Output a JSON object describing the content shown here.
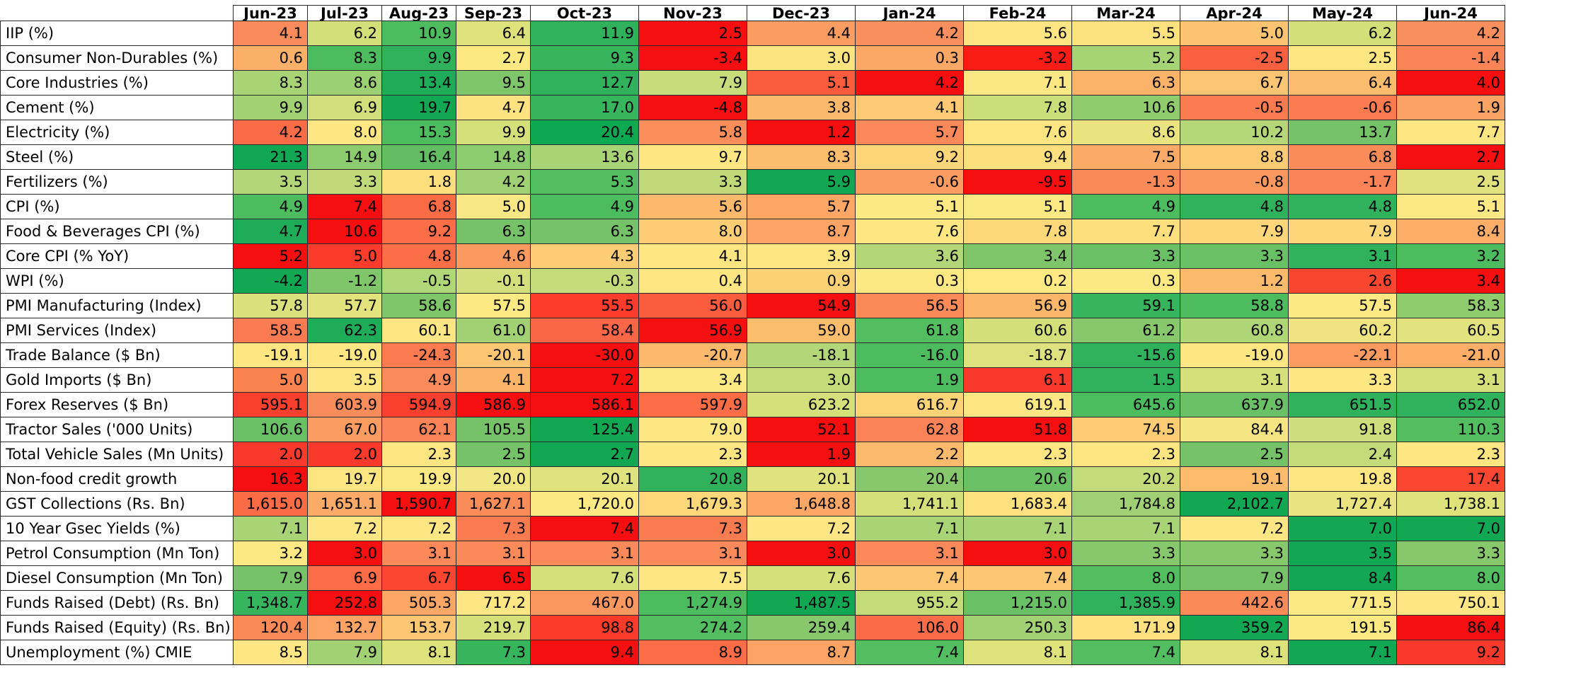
{
  "chart_data": {
    "type": "heatmap",
    "columns": [
      "Jun-23",
      "Jul-23",
      "Aug-23",
      "Sep-23",
      "Oct-23",
      "Nov-23",
      "Dec-23",
      "Jan-24",
      "Feb-24",
      "Mar-24",
      "Apr-24",
      "May-24",
      "Jun-24"
    ],
    "rows": [
      {
        "label": "IIP (%)",
        "values": [
          "4.1",
          "6.2",
          "10.9",
          "6.4",
          "11.9",
          "2.5",
          "4.4",
          "4.2",
          "5.6",
          "5.5",
          "5.0",
          "6.2",
          "4.2"
        ],
        "colors": [
          "#f98b5c",
          "#d3e07a",
          "#4cbc5f",
          "#dde27b",
          "#2fb25b",
          "#f60f10",
          "#fb9d61",
          "#f98f5d",
          "#fde584",
          "#fbe27e",
          "#fcc471",
          "#d3e07a",
          "#f98f5d"
        ]
      },
      {
        "label": "Consumer Non-Durables (%)",
        "values": [
          "0.6",
          "8.3",
          "9.9",
          "2.7",
          "9.3",
          "-3.4",
          "3.0",
          "0.3",
          "-3.2",
          "5.2",
          "-2.5",
          "2.5",
          "-1.4"
        ],
        "colors": [
          "#fbb069",
          "#4cbc5f",
          "#2fb25b",
          "#fce982",
          "#37b55c",
          "#f60f10",
          "#fce580",
          "#fba866",
          "#f71c16",
          "#a6d475",
          "#f9603f",
          "#fee783",
          "#fa8455"
        ]
      },
      {
        "label": "Core Industries (%)",
        "values": [
          "8.3",
          "8.6",
          "13.4",
          "9.5",
          "12.7",
          "7.9",
          "5.1",
          "4.2",
          "7.1",
          "6.3",
          "6.7",
          "6.4",
          "4.0"
        ],
        "colors": [
          "#a9d476",
          "#9bd073",
          "#1eac58",
          "#7fc56a",
          "#2fb25b",
          "#c8dc7c",
          "#fc5c3e",
          "#f60f10",
          "#fbe885",
          "#fbb36a",
          "#fcc573",
          "#fbbc6d",
          "#f60f10"
        ]
      },
      {
        "label": "Cement (%)",
        "values": [
          "9.9",
          "6.9",
          "19.7",
          "4.7",
          "17.0",
          "-4.8",
          "3.8",
          "4.1",
          "7.8",
          "10.6",
          "-0.5",
          "-0.6",
          "1.9"
        ],
        "colors": [
          "#a1d173",
          "#d1de7c",
          "#12a853",
          "#fce280",
          "#37b55c",
          "#f60f10",
          "#fbb96b",
          "#fcca74",
          "#ccde7a",
          "#8fcc6e",
          "#fb7b51",
          "#fb7b51",
          "#fba265"
        ]
      },
      {
        "label": "Electricity (%)",
        "values": [
          "4.2",
          "8.0",
          "15.3",
          "9.9",
          "20.4",
          "5.8",
          "1.2",
          "5.7",
          "7.6",
          "8.6",
          "10.2",
          "13.7",
          "7.7"
        ],
        "colors": [
          "#fa6c47",
          "#fee683",
          "#4cbc5f",
          "#d5e07b",
          "#0fa852",
          "#fb8d5a",
          "#f60f10",
          "#fb8959",
          "#fde582",
          "#e9e480",
          "#b4d777",
          "#76c268",
          "#fde582"
        ]
      },
      {
        "label": "Steel (%)",
        "values": [
          "21.3",
          "14.9",
          "16.4",
          "14.8",
          "13.6",
          "9.7",
          "8.3",
          "9.2",
          "9.4",
          "7.5",
          "8.8",
          "6.8",
          "2.7"
        ],
        "colors": [
          "#12a853",
          "#8ccc6e",
          "#63bd62",
          "#8ccc6e",
          "#a9d476",
          "#fee683",
          "#fcbd6d",
          "#fdd67a",
          "#fde07d",
          "#fbaa67",
          "#fbcb74",
          "#fa8c5a",
          "#f60f10"
        ]
      },
      {
        "label": "Fertilizers (%)",
        "values": [
          "3.5",
          "3.3",
          "1.8",
          "4.2",
          "5.3",
          "3.3",
          "5.9",
          "-0.6",
          "-9.5",
          "-1.3",
          "-0.8",
          "-1.7",
          "2.5"
        ],
        "colors": [
          "#b2d678",
          "#c0da7a",
          "#fde07d",
          "#9fd174",
          "#52be5f",
          "#c0da7a",
          "#12a853",
          "#fb9d61",
          "#f60f10",
          "#fb8a59",
          "#fb9860",
          "#fb8357",
          "#e0e27e"
        ]
      },
      {
        "label": "CPI (%)",
        "values": [
          "4.9",
          "7.4",
          "6.8",
          "5.0",
          "4.9",
          "5.6",
          "5.7",
          "5.1",
          "5.1",
          "4.9",
          "4.8",
          "4.8",
          "5.1"
        ],
        "colors": [
          "#4cbc5f",
          "#f60f10",
          "#fa6b46",
          "#f7e785",
          "#4cbc5f",
          "#fcb96b",
          "#fca766",
          "#fde983",
          "#fde983",
          "#4cbc5f",
          "#2fb25b",
          "#2fb25b",
          "#fde983"
        ]
      },
      {
        "label": "Food & Beverages CPI (%)",
        "values": [
          "4.7",
          "10.6",
          "9.2",
          "6.3",
          "6.3",
          "8.0",
          "8.7",
          "7.6",
          "7.8",
          "7.7",
          "7.9",
          "7.9",
          "8.4"
        ],
        "colors": [
          "#1eac58",
          "#f60f10",
          "#fb6e48",
          "#76c268",
          "#76c268",
          "#fdcd76",
          "#fba465",
          "#fee683",
          "#fdd87b",
          "#fde07d",
          "#fdd67a",
          "#fdd67a",
          "#fcae69"
        ]
      },
      {
        "label": "Core CPI (% YoY)",
        "values": [
          "5.2",
          "5.0",
          "4.8",
          "4.6",
          "4.3",
          "4.1",
          "3.9",
          "3.6",
          "3.4",
          "3.3",
          "3.3",
          "3.1",
          "3.2"
        ],
        "colors": [
          "#f60f10",
          "#fb3c2c",
          "#fb6e48",
          "#fb9a5f",
          "#fccd75",
          "#fde582",
          "#fde582",
          "#b2d678",
          "#7fc56a",
          "#6ac065",
          "#6ac065",
          "#2fb25b",
          "#4cbc5f"
        ]
      },
      {
        "label": "WPI (%)",
        "values": [
          "-4.2",
          "-1.2",
          "-0.5",
          "-0.1",
          "-0.3",
          "0.4",
          "0.9",
          "0.3",
          "0.2",
          "0.3",
          "1.2",
          "2.6",
          "3.4"
        ],
        "colors": [
          "#12a853",
          "#7fc56a",
          "#b0d777",
          "#d2df7c",
          "#c4db7a",
          "#fde582",
          "#fcd074",
          "#fde983",
          "#fee983",
          "#fde983",
          "#fcba6c",
          "#f9472f",
          "#f60f10"
        ]
      },
      {
        "label": "PMI Manufacturing (Index)",
        "values": [
          "57.8",
          "57.7",
          "58.6",
          "57.5",
          "55.5",
          "56.0",
          "54.9",
          "56.5",
          "56.9",
          "59.1",
          "58.8",
          "57.5",
          "58.3"
        ],
        "colors": [
          "#dae17c",
          "#e3e37e",
          "#7fc56a",
          "#fde983",
          "#fc3c2c",
          "#fc5c3e",
          "#f60f10",
          "#fb8a59",
          "#fcb66a",
          "#37b55c",
          "#4cbc5f",
          "#fde983",
          "#8fcc6e"
        ]
      },
      {
        "label": "PMI Services (Index)",
        "values": [
          "58.5",
          "62.3",
          "60.1",
          "61.0",
          "58.4",
          "56.9",
          "59.0",
          "61.8",
          "60.6",
          "61.2",
          "60.8",
          "60.2",
          "60.5"
        ],
        "colors": [
          "#fa7b52",
          "#1eac58",
          "#fde683",
          "#a1d173",
          "#fa6646",
          "#f60f10",
          "#fcbd6d",
          "#52be5f",
          "#d3e07a",
          "#86c86b",
          "#afd676",
          "#eee582",
          "#e2e27f"
        ]
      },
      {
        "label": "Trade Balance ($ Bn)",
        "values": [
          "-19.1",
          "-19.0",
          "-24.3",
          "-20.1",
          "-30.0",
          "-20.7",
          "-18.1",
          "-16.0",
          "-18.7",
          "-15.6",
          "-19.0",
          "-22.1",
          "-21.0"
        ],
        "colors": [
          "#fde582",
          "#fee683",
          "#fb7b51",
          "#fcc672",
          "#f60f10",
          "#fcb86b",
          "#b2d678",
          "#4cbc5f",
          "#dee27e",
          "#2fb25b",
          "#fee683",
          "#fb9b60",
          "#fcae69"
        ]
      },
      {
        "label": "Gold Imports ($ Bn)",
        "values": [
          "5.0",
          "3.5",
          "4.9",
          "4.1",
          "7.2",
          "3.4",
          "3.0",
          "1.9",
          "6.1",
          "1.5",
          "3.1",
          "3.3",
          "3.1"
        ],
        "colors": [
          "#fb834f",
          "#fde683",
          "#fb8b5a",
          "#fcb468",
          "#f60f10",
          "#fde983",
          "#c4db7a",
          "#4cbc5f",
          "#f9392b",
          "#2fb25b",
          "#d5e07b",
          "#fde783",
          "#d5e07b"
        ]
      },
      {
        "label": "Forex Reserves ($ Bn)",
        "values": [
          "595.1",
          "603.9",
          "594.9",
          "586.9",
          "586.1",
          "597.9",
          "623.2",
          "616.7",
          "619.1",
          "645.6",
          "637.9",
          "651.5",
          "652.0"
        ],
        "colors": [
          "#f9402e",
          "#fa8b5a",
          "#f9402e",
          "#f60f10",
          "#f60f10",
          "#fb6c47",
          "#d5e07b",
          "#fcd376",
          "#fde683",
          "#4cbc5f",
          "#6ac065",
          "#2fb25b",
          "#2fb25b"
        ]
      },
      {
        "label": "Tractor Sales ('000 Units)",
        "values": [
          "106.6",
          "67.0",
          "62.1",
          "105.5",
          "125.4",
          "79.0",
          "52.1",
          "62.8",
          "51.8",
          "74.5",
          "84.4",
          "91.8",
          "110.3"
        ],
        "colors": [
          "#6ac065",
          "#fb9d61",
          "#fb8357",
          "#76c268",
          "#12a853",
          "#fde783",
          "#f60f10",
          "#fb8357",
          "#f60f10",
          "#fdcd76",
          "#f4e582",
          "#cede7c",
          "#52be5f"
        ]
      },
      {
        "label": "Total Vehicle Sales (Mn Units)",
        "values": [
          "2.0",
          "2.0",
          "2.3",
          "2.5",
          "2.7",
          "2.3",
          "1.9",
          "2.2",
          "2.3",
          "2.3",
          "2.5",
          "2.4",
          "2.3"
        ],
        "colors": [
          "#f9392b",
          "#f9392b",
          "#fde582",
          "#76c268",
          "#12a853",
          "#fde582",
          "#f60f10",
          "#fcba6c",
          "#fde582",
          "#fde582",
          "#76c268",
          "#c4db7a",
          "#fde582"
        ]
      },
      {
        "label": "Non-food credit growth",
        "values": [
          "16.3",
          "19.7",
          "19.9",
          "20.0",
          "20.1",
          "20.8",
          "20.1",
          "20.4",
          "20.6",
          "20.2",
          "19.1",
          "19.8",
          "17.4"
        ],
        "colors": [
          "#f60f10",
          "#fde582",
          "#fde983",
          "#f0e683",
          "#e0e27e",
          "#2fb25b",
          "#e0e27e",
          "#86c86b",
          "#6ac065",
          "#c4db7a",
          "#fcbc6b",
          "#fee683",
          "#fb4731"
        ]
      },
      {
        "label": "GST Collections (Rs. Bn)",
        "values": [
          "1,615.0",
          "1,651.1",
          "1,590.7",
          "1,627.1",
          "1,720.0",
          "1,679.3",
          "1,648.8",
          "1,741.1",
          "1,683.4",
          "1,784.8",
          "2,102.7",
          "1,727.4",
          "1,738.1"
        ],
        "colors": [
          "#fa6b46",
          "#fcaa67",
          "#f60f10",
          "#fa8c5a",
          "#fde983",
          "#fdd77a",
          "#fca766",
          "#d5e07b",
          "#fde080",
          "#9fd174",
          "#12a853",
          "#e9e480",
          "#dde27b"
        ]
      },
      {
        "label": "10 Year Gsec Yields (%)",
        "values": [
          "7.1",
          "7.2",
          "7.2",
          "7.3",
          "7.4",
          "7.3",
          "7.2",
          "7.1",
          "7.1",
          "7.1",
          "7.2",
          "7.0",
          "7.0"
        ],
        "colors": [
          "#a9d476",
          "#fde683",
          "#fde683",
          "#fb7b51",
          "#f60f10",
          "#fb7b51",
          "#fde683",
          "#a9d476",
          "#a9d476",
          "#a9d476",
          "#fde683",
          "#12a853",
          "#12a853"
        ]
      },
      {
        "label": "Petrol Consumption (Mn Ton)",
        "values": [
          "3.2",
          "3.0",
          "3.1",
          "3.1",
          "3.1",
          "3.1",
          "3.0",
          "3.1",
          "3.0",
          "3.3",
          "3.3",
          "3.5",
          "3.3"
        ],
        "colors": [
          "#fde983",
          "#f60f10",
          "#fb8959",
          "#fb8959",
          "#fb8959",
          "#fb8959",
          "#f60f10",
          "#fb8959",
          "#f60f10",
          "#86c86b",
          "#86c86b",
          "#12a853",
          "#86c86b"
        ]
      },
      {
        "label": "Diesel Consumption (Mn Ton)",
        "values": [
          "7.9",
          "6.9",
          "6.7",
          "6.5",
          "7.6",
          "7.5",
          "7.6",
          "7.4",
          "7.4",
          "8.0",
          "7.9",
          "8.4",
          "8.0"
        ],
        "colors": [
          "#76c268",
          "#fb6c47",
          "#fb4731",
          "#f60f10",
          "#d5e07b",
          "#fde683",
          "#d5e07b",
          "#fcc672",
          "#fcc672",
          "#52be5f",
          "#76c268",
          "#12a853",
          "#52be5f"
        ]
      },
      {
        "label": "Funds Raised (Debt) (Rs. Bn)",
        "values": [
          "1,348.7",
          "252.8",
          "505.3",
          "717.2",
          "467.0",
          "1,274.9",
          "1,487.5",
          "955.2",
          "1,215.0",
          "1,385.9",
          "442.6",
          "771.5",
          "750.1"
        ],
        "colors": [
          "#37b55c",
          "#f60f10",
          "#fca766",
          "#fde683",
          "#fb9860",
          "#4cbc5f",
          "#12a853",
          "#c4db7a",
          "#6ac065",
          "#2fb25b",
          "#fb8a59",
          "#fde983",
          "#fde683"
        ]
      },
      {
        "label": "Funds Raised (Equity) (Rs. Bn)",
        "values": [
          "120.4",
          "132.7",
          "153.7",
          "219.7",
          "98.8",
          "274.2",
          "259.4",
          "106.0",
          "250.3",
          "171.9",
          "359.2",
          "191.5",
          "86.4"
        ],
        "colors": [
          "#fb8a59",
          "#fba465",
          "#fcc672",
          "#d5e07b",
          "#fa3a2b",
          "#52be5f",
          "#86c86b",
          "#fa6c47",
          "#a1d173",
          "#fde080",
          "#12a853",
          "#fde983",
          "#f60f10"
        ]
      },
      {
        "label": "Unemployment (%) CMIE",
        "values": [
          "8.5",
          "7.9",
          "8.1",
          "7.3",
          "9.4",
          "8.9",
          "8.7",
          "7.4",
          "8.1",
          "7.4",
          "8.1",
          "7.1",
          "9.2"
        ],
        "colors": [
          "#fde683",
          "#a1d173",
          "#dde27b",
          "#37b55c",
          "#f60f10",
          "#fb6c47",
          "#fba465",
          "#52be5f",
          "#dde27b",
          "#52be5f",
          "#dde27b",
          "#12a853",
          "#f9392b"
        ]
      }
    ]
  }
}
